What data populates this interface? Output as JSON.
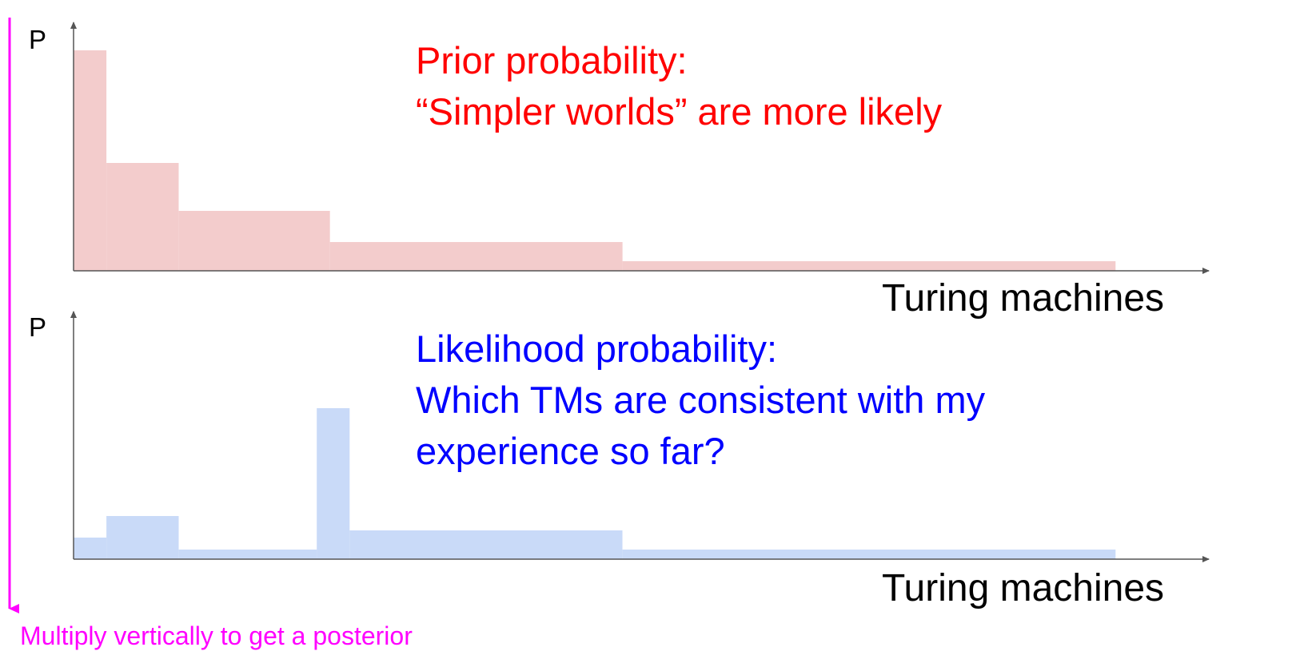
{
  "chart_data": [
    {
      "type": "bar",
      "ylabel": "P",
      "xlabel": "Turing machines",
      "annotation": [
        "Prior probability:",
        "“Simpler worlds” are more likely"
      ],
      "bins": [
        {
          "x0": 0,
          "x1": 1,
          "value": 0.92
        },
        {
          "x0": 1,
          "x1": 3.2,
          "value": 0.45
        },
        {
          "x0": 3.2,
          "x1": 7.8,
          "value": 0.25
        },
        {
          "x0": 7.8,
          "x1": 16.7,
          "value": 0.12
        },
        {
          "x0": 16.7,
          "x1": 31.7,
          "value": 0.04
        }
      ],
      "xlim": [
        0,
        34.2
      ],
      "ylim": [
        0,
        1.0
      ],
      "color": "#f3cccc"
    },
    {
      "type": "bar",
      "ylabel": "P",
      "xlabel": "Turing machines",
      "annotation": [
        "Likelihood probability:",
        "Which TMs are consistent with my",
        "experience so far?"
      ],
      "bins": [
        {
          "x0": 0,
          "x1": 1,
          "value": 0.09
        },
        {
          "x0": 1,
          "x1": 3.2,
          "value": 0.18
        },
        {
          "x0": 3.2,
          "x1": 7.4,
          "value": 0.04
        },
        {
          "x0": 7.4,
          "x1": 8.4,
          "value": 0.63
        },
        {
          "x0": 8.4,
          "x1": 16.7,
          "value": 0.12
        },
        {
          "x0": 16.7,
          "x1": 31.7,
          "value": 0.04
        }
      ],
      "xlim": [
        0,
        34.2
      ],
      "ylim": [
        0,
        1.0
      ],
      "color": "#c9daf8"
    }
  ],
  "footer": "Multiply vertically to get a posterior",
  "colors": {
    "prior_text": "#ff0000",
    "likelihood_text": "#0000ff",
    "footer": "#ff00ff",
    "axis": "#555555"
  }
}
